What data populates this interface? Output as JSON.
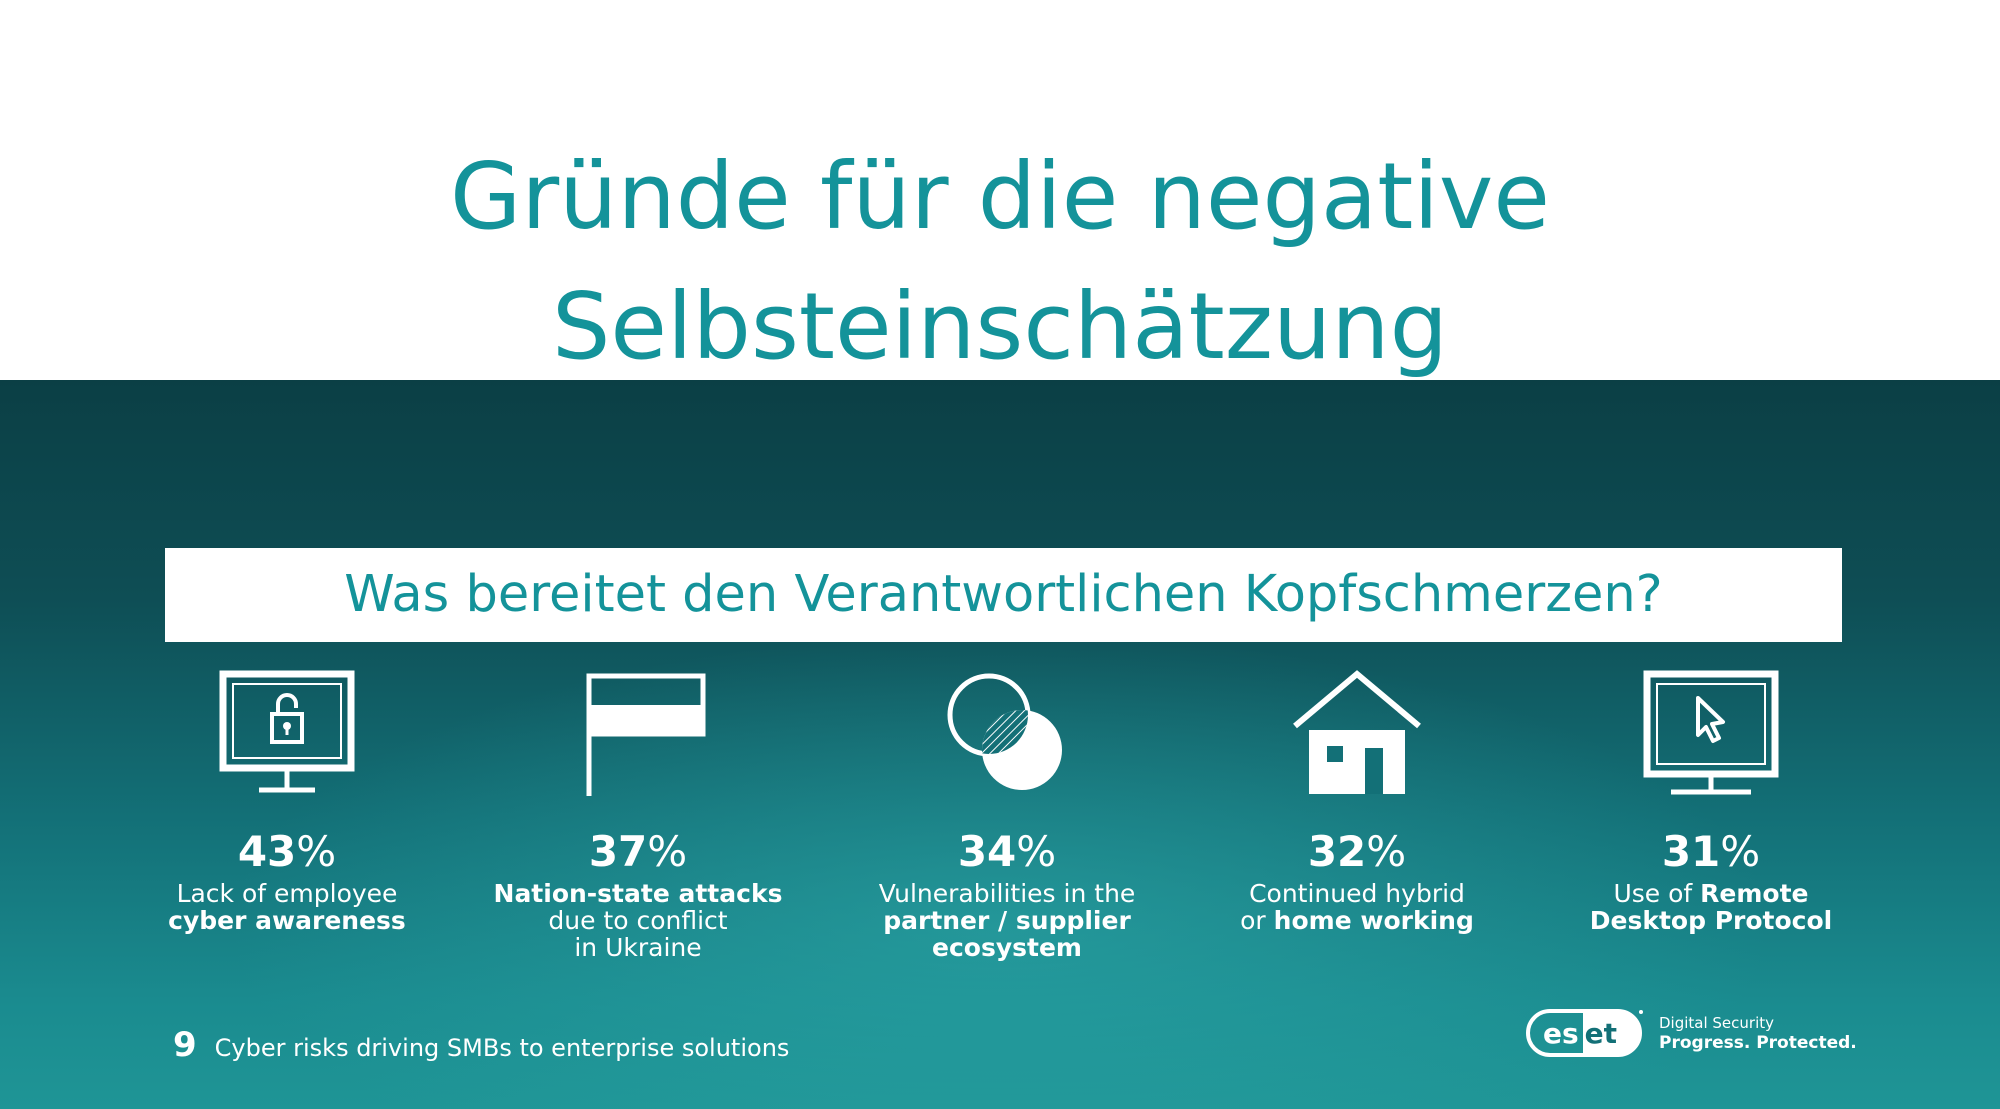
{
  "slide": {
    "title": "Gründe für die negative Selbsteinschätzung"
  },
  "infographic": {
    "question": "Was bereitet den Verantwortlichen Kopfschmerzen?",
    "stats": [
      {
        "icon": "monitor-lock-icon",
        "value": "43",
        "unit": "%",
        "lines": [
          [
            {
              "text": "Lack of employee",
              "bold": false
            }
          ],
          [
            {
              "text": "cyber awareness",
              "bold": true
            }
          ]
        ]
      },
      {
        "icon": "flag-icon",
        "value": "37",
        "unit": "%",
        "lines": [
          [
            {
              "text": "Nation-state attacks",
              "bold": true
            }
          ],
          [
            {
              "text": "due to conflict",
              "bold": false
            }
          ],
          [
            {
              "text": "in Ukraine",
              "bold": false
            }
          ]
        ]
      },
      {
        "icon": "overlapping-circles-icon",
        "value": "34",
        "unit": "%",
        "lines": [
          [
            {
              "text": "Vulnerabilities in the",
              "bold": false
            }
          ],
          [
            {
              "text": "partner / supplier",
              "bold": true
            }
          ],
          [
            {
              "text": "ecosystem",
              "bold": true
            }
          ]
        ]
      },
      {
        "icon": "house-icon",
        "value": "32",
        "unit": "%",
        "lines": [
          [
            {
              "text": "Continued hybrid",
              "bold": false
            }
          ],
          [
            {
              "text": "or ",
              "bold": false
            },
            {
              "text": "home working",
              "bold": true
            }
          ]
        ]
      },
      {
        "icon": "monitor-cursor-icon",
        "value": "31",
        "unit": "%",
        "lines": [
          [
            {
              "text": "Use of ",
              "bold": false
            },
            {
              "text": "Remote",
              "bold": true
            }
          ],
          [
            {
              "text": "Desktop Protocol",
              "bold": true
            }
          ]
        ]
      }
    ],
    "footer": {
      "page_number": "9",
      "caption": "Cyber risks driving SMBs to enterprise solutions"
    },
    "brand": {
      "logo_text": "eset",
      "tagline_1": "Digital Security",
      "tagline_2": "Progress. Protected."
    }
  },
  "colors": {
    "accent": "#14939a",
    "background_dark": "#0b3f45",
    "background_light": "#1f9596",
    "text_light": "#ffffff"
  }
}
